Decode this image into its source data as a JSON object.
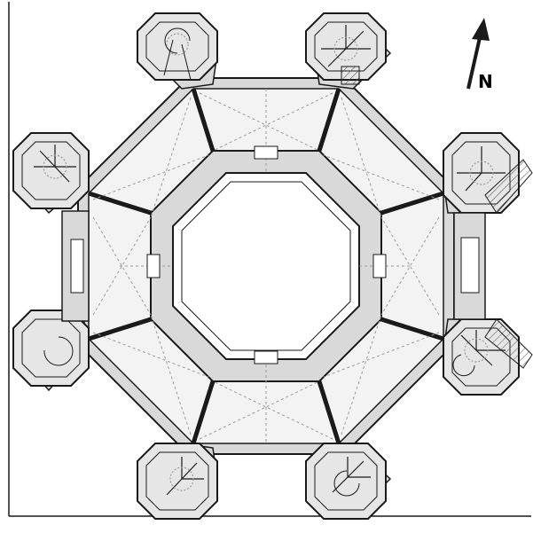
{
  "figure": {
    "compass_label": "N",
    "compass_icon": "north-arrow-icon",
    "colors": {
      "ink": "#1a1a1a",
      "wall_fill": "#d9d9d9",
      "room_fill": "#f3f3f3",
      "courtyard_fill": "#ffffff",
      "dotted_line": "#9a9a9a",
      "background": "#ffffff"
    }
  }
}
